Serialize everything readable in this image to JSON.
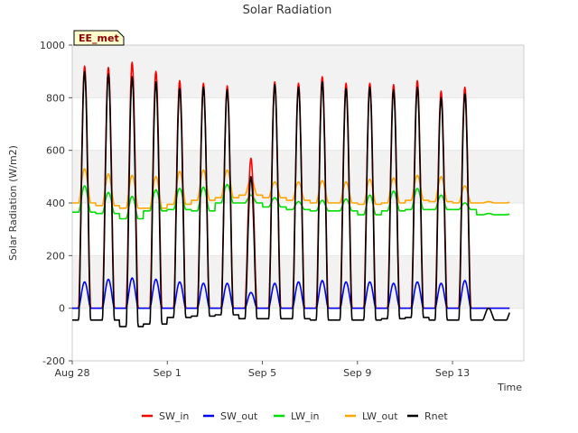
{
  "chart_data": {
    "type": "line",
    "title": "Solar Radiation",
    "site_label": "EE_met",
    "xlabel": "Time",
    "ylabel": "Solar Radiation (W/m2)",
    "ylim": [
      -200,
      1000
    ],
    "yticks": [
      -200,
      0,
      200,
      400,
      600,
      800,
      1000
    ],
    "xlim": [
      "2023-08-28",
      "2023-09-16"
    ],
    "xticks": [
      {
        "date": "2023-08-28",
        "label": "Aug 28"
      },
      {
        "date": "2023-09-01",
        "label": "Sep 1"
      },
      {
        "date": "2023-09-05",
        "label": "Sep 5"
      },
      {
        "date": "2023-09-09",
        "label": "Sep 9"
      },
      {
        "date": "2023-09-13",
        "label": "Sep 13"
      }
    ],
    "grid": true,
    "background_bands": true,
    "legend_position": "bottom",
    "days": [
      "Aug 28",
      "Aug 29",
      "Aug 30",
      "Aug 31",
      "Sep 1",
      "Sep 2",
      "Sep 3",
      "Sep 4",
      "Sep 5",
      "Sep 6",
      "Sep 7",
      "Sep 8",
      "Sep 9",
      "Sep 10",
      "Sep 11",
      "Sep 12",
      "Sep 13",
      "Sep 14"
    ],
    "series": [
      {
        "name": "SW_in",
        "color": "#ff0000",
        "daily_max": [
          920,
          915,
          935,
          900,
          865,
          855,
          845,
          570,
          860,
          855,
          880,
          855,
          855,
          850,
          865,
          825,
          840,
          0
        ],
        "night_min": [
          0,
          0,
          0,
          0,
          0,
          0,
          0,
          0,
          0,
          0,
          0,
          0,
          0,
          0,
          0,
          0,
          0,
          0
        ]
      },
      {
        "name": "SW_out",
        "color": "#0000ff",
        "daily_max": [
          100,
          110,
          115,
          110,
          100,
          95,
          95,
          60,
          95,
          100,
          105,
          100,
          100,
          95,
          100,
          95,
          105,
          0
        ],
        "night_min": [
          0,
          0,
          0,
          0,
          0,
          0,
          0,
          0,
          0,
          0,
          0,
          0,
          0,
          0,
          0,
          0,
          0,
          0
        ]
      },
      {
        "name": "LW_in",
        "color": "#00dd00",
        "daily_max": [
          465,
          440,
          425,
          450,
          455,
          460,
          470,
          430,
          420,
          405,
          410,
          415,
          430,
          445,
          455,
          430,
          400,
          360
        ],
        "night_min": [
          365,
          360,
          340,
          370,
          375,
          370,
          400,
          400,
          385,
          375,
          370,
          370,
          355,
          370,
          375,
          375,
          375,
          355
        ]
      },
      {
        "name": "LW_out",
        "color": "#ffa500",
        "daily_max": [
          530,
          510,
          505,
          500,
          520,
          525,
          525,
          490,
          480,
          480,
          485,
          480,
          490,
          495,
          505,
          500,
          465,
          405
        ],
        "night_min": [
          400,
          390,
          380,
          380,
          395,
          410,
          420,
          430,
          420,
          410,
          400,
          400,
          395,
          400,
          410,
          405,
          400,
          400
        ]
      },
      {
        "name": "Rnet",
        "color": "#000000",
        "daily_max": [
          900,
          890,
          880,
          860,
          835,
          840,
          830,
          500,
          850,
          840,
          860,
          835,
          840,
          830,
          840,
          800,
          815,
          0
        ],
        "night_min": [
          -45,
          -45,
          -70,
          -60,
          -35,
          -30,
          -25,
          -40,
          -40,
          -40,
          -45,
          -45,
          -45,
          -40,
          -35,
          -45,
          -45,
          -45
        ]
      }
    ]
  }
}
